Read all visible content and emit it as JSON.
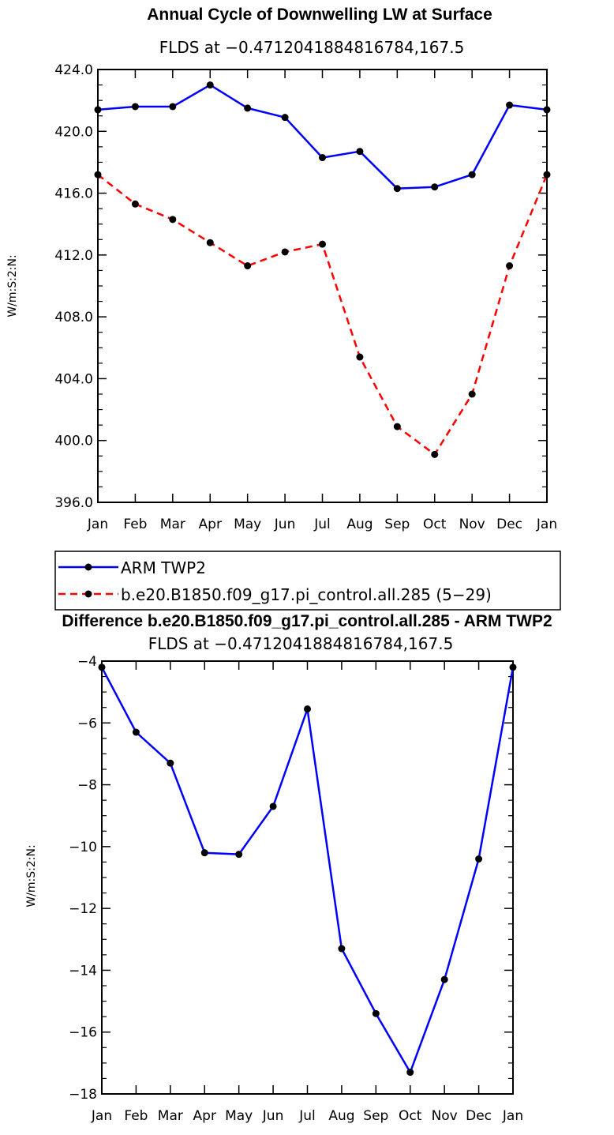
{
  "chart_data": [
    {
      "type": "line",
      "title": "Annual Cycle of Downwelling LW at Surface",
      "subtitle": "FLDS at −0.4712041884816784,167.5",
      "ylabel": "W/m:S:2:N:",
      "categories": [
        "Jan",
        "Feb",
        "Mar",
        "Apr",
        "May",
        "Jun",
        "Jul",
        "Aug",
        "Sep",
        "Oct",
        "Nov",
        "Dec",
        "Jan"
      ],
      "yticks": [
        "396.0",
        "400.0",
        "404.0",
        "408.0",
        "412.0",
        "416.0",
        "420.0",
        "424.0"
      ],
      "ylim": [
        396,
        424
      ],
      "series": [
        {
          "name": "ARM TWP2",
          "color": "#0000ff",
          "dash": "solid",
          "values": [
            421.4,
            421.6,
            421.6,
            423.0,
            421.5,
            420.9,
            418.3,
            418.7,
            416.3,
            416.4,
            417.2,
            421.7,
            421.4
          ]
        },
        {
          "name": "b.e20.B1850.f09_g17.pi_control.all.285 (5−29)",
          "color": "#ff0000",
          "dash": "dashed",
          "values": [
            417.2,
            415.3,
            414.3,
            412.8,
            411.3,
            412.2,
            412.7,
            405.4,
            400.9,
            399.1,
            403.0,
            411.3,
            417.2
          ]
        }
      ],
      "legend_position": "below"
    },
    {
      "type": "line",
      "title": "Difference b.e20.B1850.f09_g17.pi_control.all.285 - ARM TWP2",
      "subtitle": "FLDS at −0.4712041884816784,167.5",
      "ylabel": "W/m:S:2:N:",
      "categories": [
        "Jan",
        "Feb",
        "Mar",
        "Apr",
        "May",
        "Jun",
        "Jul",
        "Aug",
        "Sep",
        "Oct",
        "Nov",
        "Dec",
        "Jan"
      ],
      "yticks": [
        "−18",
        "−16",
        "−14",
        "−12",
        "−10",
        "−8",
        "−6",
        "−4"
      ],
      "ylim": [
        -18,
        -4
      ],
      "series": [
        {
          "color": "#0000ff",
          "dash": "solid",
          "values": [
            -4.2,
            -6.3,
            -7.3,
            -10.2,
            -10.25,
            -8.7,
            -5.55,
            -13.3,
            -15.4,
            -17.3,
            -14.3,
            -10.4,
            -4.2
          ]
        }
      ]
    }
  ]
}
